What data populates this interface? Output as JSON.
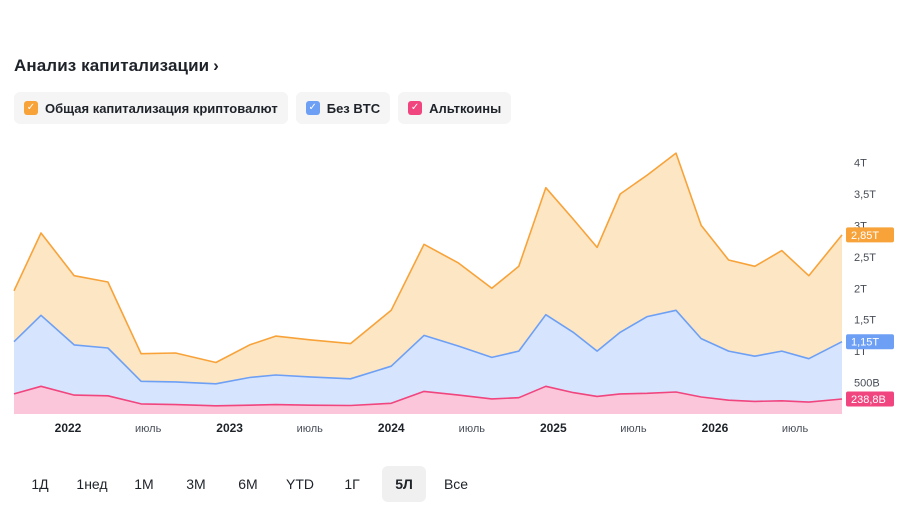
{
  "header": {
    "title": "Анализ капитализации",
    "chevron": "›"
  },
  "legend": [
    {
      "label": "Общая капитализация криптовалют",
      "color": "#f7a33a",
      "check": "✓"
    },
    {
      "label": "Без BTC",
      "color": "#6d9ff5",
      "check": "✓"
    },
    {
      "label": "Альткоины",
      "color": "#f0457e",
      "check": "✓"
    }
  ],
  "ranges": [
    {
      "label": "1Д",
      "active": false
    },
    {
      "label": "1нед",
      "active": false
    },
    {
      "label": "1М",
      "active": false
    },
    {
      "label": "3М",
      "active": false
    },
    {
      "label": "6М",
      "active": false
    },
    {
      "label": "YTD",
      "active": false
    },
    {
      "label": "1Г",
      "active": false
    },
    {
      "label": "5Л",
      "active": true
    },
    {
      "label": "Все",
      "active": false
    }
  ],
  "chart_data": {
    "type": "area",
    "y_unit": "USD",
    "ylim": [
      0,
      4200000000000
    ],
    "xlim": [
      "2021-09-01",
      "2026-10-15"
    ],
    "y_ticks": [
      {
        "value": 500000000000,
        "label": "500B"
      },
      {
        "value": 1000000000000,
        "label": "1T"
      },
      {
        "value": 1500000000000,
        "label": "1,5T"
      },
      {
        "value": 2000000000000,
        "label": "2T"
      },
      {
        "value": 2500000000000,
        "label": "2,5T"
      },
      {
        "value": 3000000000000,
        "label": "3T"
      },
      {
        "value": 3500000000000,
        "label": "3,5T"
      },
      {
        "value": 4000000000000,
        "label": "4T"
      }
    ],
    "x_ticks": [
      {
        "date": "2022-01-01",
        "label": "2022"
      },
      {
        "date": "2022-07-01",
        "label": "июль"
      },
      {
        "date": "2023-01-01",
        "label": "2023"
      },
      {
        "date": "2023-07-01",
        "label": "июль"
      },
      {
        "date": "2024-01-01",
        "label": "2024"
      },
      {
        "date": "2024-07-01",
        "label": "июль"
      },
      {
        "date": "2025-01-01",
        "label": "2025"
      },
      {
        "date": "2025-07-01",
        "label": "июль"
      },
      {
        "date": "2026-01-01",
        "label": "2026"
      },
      {
        "date": "2026-07-01",
        "label": "июль"
      }
    ],
    "grid": false,
    "legend": "top-left",
    "x": [
      "2021-09-01",
      "2021-11-01",
      "2022-01-15",
      "2022-04-01",
      "2022-06-15",
      "2022-09-01",
      "2022-12-01",
      "2023-02-15",
      "2023-04-15",
      "2023-07-01",
      "2023-10-01",
      "2024-01-01",
      "2024-03-15",
      "2024-06-01",
      "2024-08-15",
      "2024-10-15",
      "2024-12-15",
      "2025-02-15",
      "2025-04-10",
      "2025-06-01",
      "2025-08-01",
      "2025-10-05",
      "2025-12-01",
      "2026-02-01",
      "2026-04-01",
      "2026-06-01",
      "2026-08-01",
      "2026-10-15"
    ],
    "series": [
      {
        "name": "Общая капитализация криптовалют",
        "color": "#f7a33a",
        "last_label": "2,85T",
        "values": [
          1960000000000,
          2880000000000,
          2200000000000,
          2100000000000,
          960000000000,
          970000000000,
          820000000000,
          1100000000000,
          1240000000000,
          1180000000000,
          1120000000000,
          1650000000000,
          2700000000000,
          2400000000000,
          2000000000000,
          2350000000000,
          3600000000000,
          3100000000000,
          2650000000000,
          3500000000000,
          3800000000000,
          4150000000000,
          3000000000000,
          2450000000000,
          2350000000000,
          2600000000000,
          2200000000000,
          2850000000000
        ]
      },
      {
        "name": "Без BTC",
        "color": "#6d9ff5",
        "last_label": "1,15T",
        "values": [
          1150000000000,
          1570000000000,
          1100000000000,
          1050000000000,
          520000000000,
          510000000000,
          480000000000,
          580000000000,
          620000000000,
          590000000000,
          560000000000,
          760000000000,
          1250000000000,
          1080000000000,
          900000000000,
          1000000000000,
          1580000000000,
          1300000000000,
          1000000000000,
          1300000000000,
          1550000000000,
          1650000000000,
          1200000000000,
          1000000000000,
          920000000000,
          1000000000000,
          880000000000,
          1150000000000
        ]
      },
      {
        "name": "Альткоины",
        "color": "#f0457e",
        "last_label": "238,8B",
        "values": [
          320000000000,
          440000000000,
          300000000000,
          290000000000,
          160000000000,
          150000000000,
          130000000000,
          140000000000,
          150000000000,
          140000000000,
          135000000000,
          170000000000,
          360000000000,
          300000000000,
          240000000000,
          260000000000,
          440000000000,
          340000000000,
          280000000000,
          320000000000,
          330000000000,
          350000000000,
          270000000000,
          220000000000,
          200000000000,
          210000000000,
          190000000000,
          238800000000
        ]
      }
    ]
  }
}
